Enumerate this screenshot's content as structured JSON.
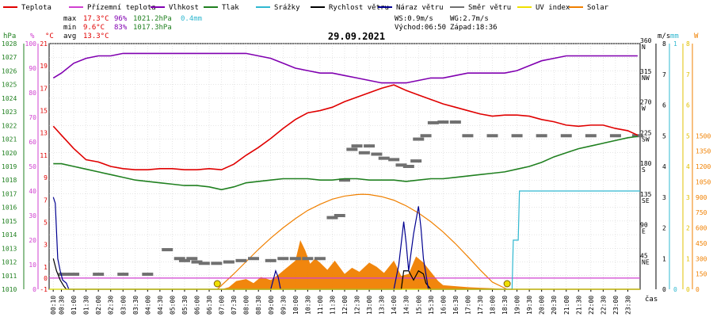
{
  "legend": [
    {
      "name": "Teplota",
      "color": "#e00000"
    },
    {
      "name": "Přízemní teplota",
      "color": "#d040d0"
    },
    {
      "name": "Vlhkost",
      "color": "#8000b0"
    },
    {
      "name": "Tlak",
      "color": "#208020"
    },
    {
      "name": "Srážky",
      "color": "#30b8d0"
    },
    {
      "name": "Rychlost větru",
      "color": "#000000"
    },
    {
      "name": "Náraz větru",
      "color": "#000090"
    },
    {
      "name": "Směr větru",
      "color": "#707070"
    },
    {
      "name": "UV index",
      "color": "#f0e000"
    },
    {
      "name": "Solar",
      "color": "#f08000"
    }
  ],
  "stats": {
    "max_label": "max",
    "max_temp": "17.3°C",
    "max_hum": "96%",
    "max_press": "1021.2hPa",
    "rain": "0.4mm",
    "min_label": "min",
    "min_temp": "9.6°C",
    "min_hum": "83%",
    "min_press": "1017.3hPa",
    "avg_label": "avg",
    "avg_temp": "13.3°C",
    "ws": "WS:0.9m/s",
    "wg": "WG:2.7m/s",
    "sunrise": "Východ:06:50",
    "sunset": "Západ:18:36"
  },
  "colors": {
    "temperature": "#e00000",
    "ground_temp": "#d040d0",
    "humidity": "#8000b0",
    "pressure": "#208020",
    "rain": "#30b8d0",
    "wind_speed": "#000000",
    "gust": "#000090",
    "wind_dir": "#707070",
    "uv": "#f0e000",
    "solar_fill": "#f08000",
    "solar_curve": "#f08000"
  },
  "chart_data": {
    "type": "line",
    "title": "29.09.2021",
    "x_label": "čas",
    "x_ticks": [
      "00:10",
      "00:30",
      "01:00",
      "01:30",
      "02:00",
      "02:30",
      "03:00",
      "03:30",
      "04:00",
      "04:30",
      "05:00",
      "05:30",
      "06:00",
      "06:30",
      "07:00",
      "07:30",
      "08:00",
      "08:30",
      "09:00",
      "09:30",
      "10:00",
      "10:30",
      "11:00",
      "11:30",
      "12:00",
      "12:30",
      "13:00",
      "13:30",
      "14:00",
      "14:30",
      "15:00",
      "15:30",
      "16:00",
      "16:30",
      "17:00",
      "17:30",
      "18:00",
      "18:30",
      "19:00",
      "19:30",
      "20:00",
      "20:30",
      "21:00",
      "21:30",
      "22:00",
      "22:30",
      "23:00",
      "23:30"
    ],
    "axes": {
      "pressure": {
        "unit": "hPa",
        "range": [
          1010,
          1028
        ],
        "ticks": [
          "1010",
          "1011",
          "1012",
          "1013",
          "1014",
          "1015",
          "1016",
          "1017",
          "1018",
          "1019",
          "1020",
          "1021",
          "1022",
          "1023",
          "1024",
          "1025",
          "1026",
          "1027",
          "1028"
        ]
      },
      "humidity": {
        "unit": "%",
        "range": [
          0,
          100
        ],
        "ticks": [
          "0",
          "10",
          "20",
          "30",
          "40",
          "50",
          "60",
          "70",
          "80",
          "90",
          "100"
        ]
      },
      "temperature": {
        "unit": "°C",
        "range": [
          -1,
          21
        ],
        "ticks": [
          "-1",
          "0",
          "1",
          "3",
          "5",
          "7",
          "9",
          "11",
          "13",
          "15",
          "17",
          "19",
          "21"
        ]
      },
      "wind_dir": {
        "range": [
          0,
          360
        ],
        "ticks": [
          {
            "v": "45",
            "d": "NE"
          },
          {
            "v": "90",
            "d": "E"
          },
          {
            "v": "135",
            "d": "SE"
          },
          {
            "v": "180",
            "d": "S"
          },
          {
            "v": "225",
            "d": "SW"
          },
          {
            "v": "270",
            "d": "W"
          },
          {
            "v": "315",
            "d": "NW"
          },
          {
            "v": "360",
            "d": "N"
          }
        ]
      },
      "wind_speed": {
        "unit": "m/s",
        "range": [
          0,
          8
        ],
        "ticks": [
          "0",
          "1",
          "2",
          "3",
          "4",
          "5",
          "6",
          "7",
          "8"
        ]
      },
      "rain": {
        "unit": "mm",
        "range": [
          0,
          1
        ],
        "ticks": [
          "0",
          "1"
        ]
      },
      "uv": {
        "range": [
          0,
          8
        ],
        "ticks": [
          "0",
          "1",
          "2",
          "3",
          "4",
          "5",
          "6",
          "7",
          "8"
        ]
      },
      "solar": {
        "unit": "W",
        "range": [
          0,
          2400
        ],
        "ticks": [
          "0",
          "150",
          "300",
          "450",
          "600",
          "750",
          "900",
          "1050",
          "1200",
          "1350",
          "1500"
        ]
      }
    },
    "series": [
      {
        "name": "Teplota",
        "axis": "temperature",
        "x": [
          0.17,
          0.5,
          1,
          1.5,
          2,
          2.5,
          3,
          3.5,
          4,
          4.5,
          5,
          5.5,
          6,
          6.5,
          7,
          7.5,
          8,
          8.5,
          9,
          9.5,
          10,
          10.5,
          11,
          11.5,
          12,
          12.5,
          13,
          13.5,
          14,
          14.5,
          15,
          15.5,
          16,
          16.5,
          17,
          17.5,
          18,
          18.5,
          19,
          19.5,
          20,
          20.5,
          21,
          21.5,
          22,
          22.5,
          23,
          23.5,
          23.9
        ],
        "y": [
          13.6,
          12.8,
          11.6,
          10.6,
          10.4,
          10.0,
          9.8,
          9.7,
          9.7,
          9.8,
          9.8,
          9.7,
          9.7,
          9.8,
          9.7,
          10.2,
          11.0,
          11.7,
          12.5,
          13.4,
          14.2,
          14.8,
          15.0,
          15.3,
          15.8,
          16.2,
          16.6,
          17.0,
          17.3,
          16.8,
          16.4,
          16.0,
          15.6,
          15.3,
          15.0,
          14.7,
          14.5,
          14.6,
          14.6,
          14.5,
          14.2,
          14.0,
          13.7,
          13.6,
          13.7,
          13.7,
          13.4,
          13.2,
          12.8
        ]
      },
      {
        "name": "Vlhkost",
        "axis": "humidity",
        "x": [
          0.17,
          0.5,
          1,
          1.5,
          2,
          2.5,
          3,
          3.5,
          4,
          4.5,
          5,
          5.5,
          6,
          6.5,
          7,
          7.5,
          8,
          8.5,
          9,
          9.5,
          10,
          10.5,
          11,
          11.5,
          12,
          12.5,
          13,
          13.5,
          14,
          14.5,
          15,
          15.5,
          16,
          16.5,
          17,
          17.5,
          18,
          18.5,
          19,
          19.5,
          20,
          20.5,
          21,
          21.5,
          22,
          22.5,
          23,
          23.5,
          23.9
        ],
        "y": [
          86,
          88,
          92,
          94,
          95,
          95,
          96,
          96,
          96,
          96,
          96,
          96,
          96,
          96,
          96,
          96,
          96,
          95,
          94,
          92,
          90,
          89,
          88,
          88,
          87,
          86,
          85,
          84,
          84,
          84,
          85,
          86,
          86,
          87,
          88,
          88,
          88,
          88,
          89,
          91,
          93,
          94,
          95,
          95,
          95,
          95,
          95,
          95,
          95
        ]
      },
      {
        "name": "Tlak",
        "axis": "pressure",
        "x": [
          0.17,
          0.5,
          1,
          1.5,
          2,
          2.5,
          3,
          3.5,
          4,
          4.5,
          5,
          5.5,
          6,
          6.5,
          7,
          7.5,
          8,
          8.5,
          9,
          9.5,
          10,
          10.5,
          11,
          11.5,
          12,
          12.5,
          13,
          13.5,
          14,
          14.5,
          15,
          15.5,
          16,
          16.5,
          17,
          17.5,
          18,
          18.5,
          19,
          19.5,
          20,
          20.5,
          21,
          21.5,
          22,
          22.5,
          23,
          23.5,
          23.9
        ],
        "y": [
          1019.2,
          1019.2,
          1019.0,
          1018.8,
          1018.6,
          1018.4,
          1018.2,
          1018.0,
          1017.9,
          1017.8,
          1017.7,
          1017.6,
          1017.6,
          1017.5,
          1017.3,
          1017.5,
          1017.8,
          1017.9,
          1018.0,
          1018.1,
          1018.1,
          1018.1,
          1018.0,
          1018.0,
          1018.1,
          1018.1,
          1018.0,
          1018.0,
          1018.0,
          1017.9,
          1018.0,
          1018.1,
          1018.1,
          1018.2,
          1018.3,
          1018.4,
          1018.5,
          1018.6,
          1018.8,
          1019.0,
          1019.3,
          1019.7,
          1020.0,
          1020.3,
          1020.5,
          1020.7,
          1020.9,
          1021.1,
          1021.2
        ]
      },
      {
        "name": "Přízemní teplota",
        "axis": "temperature",
        "x": [
          0,
          24
        ],
        "y": [
          0,
          0
        ]
      },
      {
        "name": "Srážky",
        "axis": "rain",
        "x": [
          0,
          18.8,
          18.85,
          19.05,
          19.1,
          24
        ],
        "y": [
          0,
          0,
          0.2,
          0.2,
          0.4,
          0.4
        ]
      },
      {
        "name": "Rychlost větru",
        "axis": "wind_speed",
        "x": [
          0.17,
          0.3,
          0.45,
          0.6,
          0.7,
          1,
          5,
          10,
          12,
          14.3,
          14.4,
          14.6,
          14.8,
          15.0,
          15.2,
          15.3,
          15.5,
          16,
          20,
          24
        ],
        "y": [
          1.0,
          0.6,
          0.3,
          0.1,
          0,
          0,
          0,
          0,
          0,
          0,
          0.6,
          0.6,
          0.3,
          0.6,
          0.5,
          0.2,
          0,
          0,
          0,
          0
        ]
      },
      {
        "name": "Náraz větru",
        "axis": "wind_speed",
        "x": [
          0.17,
          0.25,
          0.35,
          0.45,
          0.55,
          0.7,
          0.8,
          1,
          9,
          9.2,
          9.3,
          9.4,
          9.5,
          14,
          14.2,
          14.4,
          14.5,
          14.6,
          14.8,
          15.0,
          15.1,
          15.2,
          15.3,
          15.4,
          15.6,
          16,
          24
        ],
        "y": [
          3.0,
          2.8,
          1.0,
          0.6,
          0.3,
          0.2,
          0,
          0,
          0,
          0.6,
          0.4,
          0,
          0,
          0,
          0.8,
          2.2,
          1.5,
          0.6,
          1.8,
          2.7,
          2.0,
          1.0,
          0.5,
          0,
          0,
          0,
          0
        ]
      },
      {
        "name": "Směr větru",
        "axis": "wind_dir",
        "type": "scatter",
        "x": [
          0.6,
          1.0,
          2.0,
          3.0,
          4.0,
          4.8,
          5.3,
          5.5,
          5.8,
          6.0,
          6.3,
          6.8,
          7.3,
          7.8,
          8.3,
          9.0,
          9.5,
          10.0,
          10.5,
          11.0,
          11.5,
          11.8,
          12.0,
          12.3,
          12.5,
          12.8,
          13.0,
          13.3,
          13.6,
          14.0,
          14.3,
          14.6,
          14.9,
          15.0,
          15.3,
          15.6,
          16.0,
          16.5,
          17.0,
          18.0,
          19.0,
          20.0,
          21.0,
          22.0,
          23.0,
          23.9
        ],
        "y": [
          22,
          22,
          22,
          22,
          22,
          58,
          45,
          42,
          45,
          40,
          38,
          38,
          40,
          42,
          45,
          42,
          45,
          45,
          45,
          45,
          105,
          108,
          160,
          205,
          210,
          200,
          210,
          198,
          192,
          190,
          182,
          180,
          188,
          220,
          225,
          244,
          245,
          245,
          225,
          225,
          225,
          225,
          225,
          225,
          225,
          225
        ]
      },
      {
        "name": "Solar",
        "axis": "solar",
        "type": "area",
        "x": [
          7.0,
          7.3,
          7.6,
          8.0,
          8.3,
          8.6,
          9.0,
          9.3,
          9.6,
          10.0,
          10.2,
          10.4,
          10.6,
          10.8,
          11.0,
          11.3,
          11.6,
          12.0,
          12.3,
          12.6,
          13.0,
          13.3,
          13.6,
          14.0,
          14.3,
          14.6,
          14.9,
          15.2,
          15.5,
          15.8,
          16.0,
          16.5,
          17.0,
          17.5,
          18.0,
          18.3,
          18.6
        ],
        "y": [
          0,
          20,
          80,
          100,
          60,
          120,
          90,
          140,
          200,
          280,
          480,
          380,
          250,
          300,
          260,
          190,
          280,
          150,
          210,
          170,
          260,
          220,
          160,
          280,
          130,
          150,
          320,
          260,
          170,
          80,
          40,
          30,
          20,
          15,
          10,
          5,
          0
        ]
      },
      {
        "name": "Solar max",
        "axis": "solar",
        "type": "line",
        "x": [
          6.83,
          7.5,
          8,
          8.5,
          9,
          9.5,
          10,
          10.5,
          11,
          11.5,
          12,
          12.5,
          12.72,
          13,
          13.5,
          14,
          14.5,
          15,
          15.5,
          16,
          16.5,
          17,
          17.5,
          18,
          18.6
        ],
        "y": [
          0,
          150,
          270,
          390,
          500,
          600,
          690,
          770,
          830,
          880,
          910,
          925,
          928,
          925,
          905,
          870,
          815,
          745,
          660,
          560,
          445,
          320,
          190,
          70,
          0
        ]
      },
      {
        "name": "UV index",
        "axis": "uv",
        "type": "line",
        "x": [
          0,
          24
        ],
        "y": [
          0,
          0
        ]
      }
    ],
    "markers": [
      {
        "name": "sunrise",
        "x": 6.83
      },
      {
        "name": "sunset",
        "x": 18.6
      }
    ]
  }
}
